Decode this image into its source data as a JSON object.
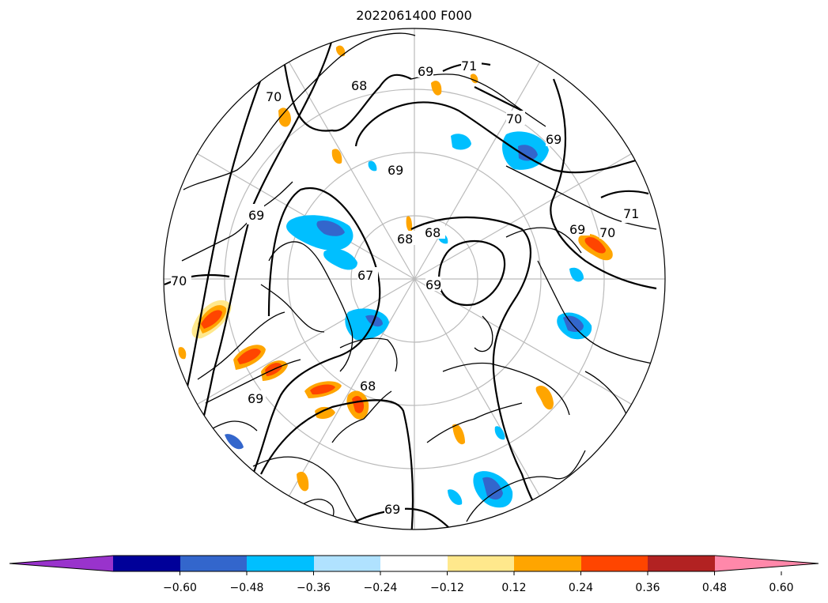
{
  "title": "2022061400 F000",
  "colorbar": {
    "ticks": [
      "−0.60",
      "−0.48",
      "−0.36",
      "−0.24",
      "−0.12",
      "0.12",
      "0.24",
      "0.36",
      "0.48",
      "0.60"
    ],
    "colors": [
      "#9933cc",
      "#000099",
      "#3366cc",
      "#00bfff",
      "#b0e2ff",
      "#ffffff",
      "#ffe88c",
      "#ffa500",
      "#ff4500",
      "#b22222",
      "#ff88aa"
    ]
  },
  "contour_labels": [
    {
      "text": "71",
      "pos": "top"
    },
    {
      "text": "68",
      "pos": "upper-left"
    },
    {
      "text": "70",
      "pos": "upper-left"
    },
    {
      "text": "69",
      "pos": "top"
    },
    {
      "text": "70",
      "pos": "top-right"
    },
    {
      "text": "69",
      "pos": "top-right"
    },
    {
      "text": "69",
      "pos": "center-top"
    },
    {
      "text": "68",
      "pos": "center"
    },
    {
      "text": "68",
      "pos": "center"
    },
    {
      "text": "69",
      "pos": "left"
    },
    {
      "text": "67",
      "pos": "center-left"
    },
    {
      "text": "69",
      "pos": "center"
    },
    {
      "text": "70",
      "pos": "left"
    },
    {
      "text": "69",
      "pos": "right"
    },
    {
      "text": "70",
      "pos": "right"
    },
    {
      "text": "71",
      "pos": "right"
    },
    {
      "text": "68",
      "pos": "lower-center"
    },
    {
      "text": "69",
      "pos": "lower-left"
    },
    {
      "text": "69",
      "pos": "bottom"
    }
  ]
}
